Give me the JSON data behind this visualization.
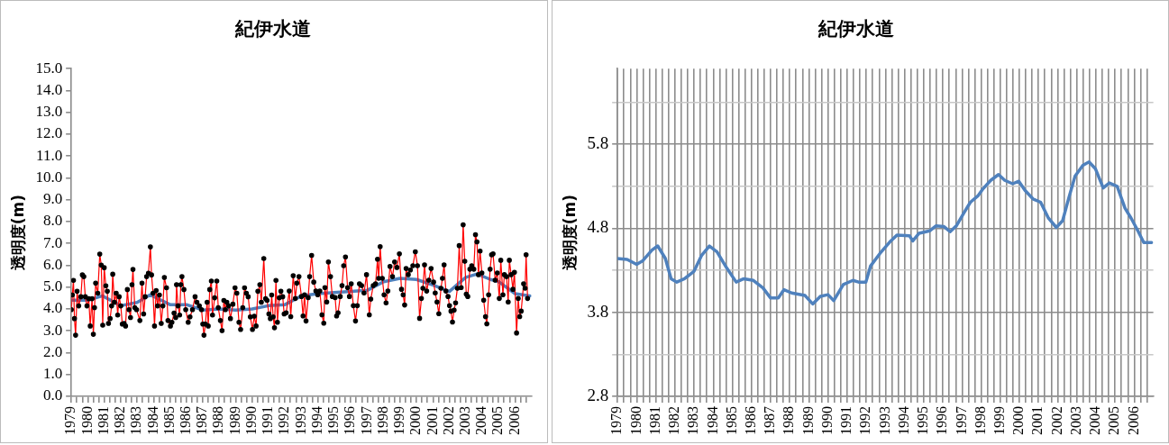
{
  "chart_data": [
    {
      "type": "line",
      "title": "紀伊水道",
      "ylabel": "透明度(m)",
      "xlim": [
        1979,
        2007
      ],
      "ylim": [
        0,
        15
      ],
      "yticks": [
        {
          "value": 0,
          "label": "0.0"
        },
        {
          "value": 1,
          "label": "1.0"
        },
        {
          "value": 2,
          "label": "2.0"
        },
        {
          "value": 3,
          "label": "3.0"
        },
        {
          "value": 4,
          "label": "4.0"
        },
        {
          "value": 5,
          "label": "5.0"
        },
        {
          "value": 6,
          "label": "6.0"
        },
        {
          "value": 7,
          "label": "7.0"
        },
        {
          "value": 8,
          "label": "8.0"
        },
        {
          "value": 9,
          "label": "9.0"
        },
        {
          "value": 10,
          "label": "10.0"
        },
        {
          "value": 11,
          "label": "11.0"
        },
        {
          "value": 12,
          "label": "12.0"
        },
        {
          "value": 13,
          "label": "13.0"
        },
        {
          "value": 14,
          "label": "14.0"
        },
        {
          "value": 15,
          "label": "15.0"
        }
      ],
      "xticks": [
        1979,
        {
          "value": 1979.33,
          "label": null
        },
        {
          "value": 1979.67,
          "label": null
        },
        1980,
        {
          "value": 1980.33,
          "label": null
        },
        {
          "value": 1980.67,
          "label": null
        },
        1981,
        {
          "value": 1981.33,
          "label": null
        },
        {
          "value": 1981.67,
          "label": null
        },
        1982,
        {
          "value": 1982.33,
          "label": null
        },
        {
          "value": 1982.67,
          "label": null
        },
        1983,
        {
          "value": 1983.33,
          "label": null
        },
        {
          "value": 1983.67,
          "label": null
        },
        1984,
        {
          "value": 1984.33,
          "label": null
        },
        {
          "value": 1984.67,
          "label": null
        },
        1985,
        {
          "value": 1985.33,
          "label": null
        },
        {
          "value": 1985.67,
          "label": null
        },
        1986,
        {
          "value": 1986.33,
          "label": null
        },
        {
          "value": 1986.67,
          "label": null
        },
        1987,
        {
          "value": 1987.33,
          "label": null
        },
        {
          "value": 1987.67,
          "label": null
        },
        1988,
        {
          "value": 1988.33,
          "label": null
        },
        {
          "value": 1988.67,
          "label": null
        },
        1989,
        {
          "value": 1989.33,
          "label": null
        },
        {
          "value": 1989.67,
          "label": null
        },
        1990,
        {
          "value": 1990.33,
          "label": null
        },
        {
          "value": 1990.67,
          "label": null
        },
        1991,
        {
          "value": 1991.33,
          "label": null
        },
        {
          "value": 1991.67,
          "label": null
        },
        1992,
        {
          "value": 1992.33,
          "label": null
        },
        {
          "value": 1992.67,
          "label": null
        },
        1993,
        {
          "value": 1993.33,
          "label": null
        },
        {
          "value": 1993.67,
          "label": null
        },
        1994,
        {
          "value": 1994.33,
          "label": null
        },
        {
          "value": 1994.67,
          "label": null
        },
        1995,
        {
          "value": 1995.33,
          "label": null
        },
        {
          "value": 1995.67,
          "label": null
        },
        1996,
        {
          "value": 1996.33,
          "label": null
        },
        {
          "value": 1996.67,
          "label": null
        },
        1997,
        {
          "value": 1997.33,
          "label": null
        },
        {
          "value": 1997.67,
          "label": null
        },
        1998,
        {
          "value": 1998.33,
          "label": null
        },
        {
          "value": 1998.67,
          "label": null
        },
        1999,
        {
          "value": 1999.33,
          "label": null
        },
        {
          "value": 1999.67,
          "label": null
        },
        2000,
        {
          "value": 2000.33,
          "label": null
        },
        {
          "value": 2000.67,
          "label": null
        },
        2001,
        {
          "value": 2001.33,
          "label": null
        },
        {
          "value": 2001.67,
          "label": null
        },
        2002,
        {
          "value": 2002.33,
          "label": null
        },
        {
          "value": 2002.67,
          "label": null
        },
        2003,
        {
          "value": 2003.33,
          "label": null
        },
        {
          "value": 2003.67,
          "label": null
        },
        2004,
        {
          "value": 2004.33,
          "label": null
        },
        {
          "value": 2004.67,
          "label": null
        },
        2005,
        {
          "value": 2005.33,
          "label": null
        },
        {
          "value": 2005.67,
          "label": null
        },
        2006,
        {
          "value": 2006.33,
          "label": null
        },
        {
          "value": 2006.67,
          "label": null
        }
      ],
      "grid": false,
      "legend": false,
      "series": [
        {
          "color": "#ff0000",
          "marker": "circle",
          "x": [
            1979.0,
            1979.06,
            1979.13,
            1979.19,
            1979.26,
            1979.35,
            1979.45,
            1979.58,
            1979.67,
            1979.76,
            1979.85,
            1979.95,
            1980.06,
            1980.15,
            1980.26,
            1980.34,
            1980.41,
            1980.48,
            1980.61,
            1980.73,
            1980.82,
            1980.91,
            1981.0,
            1981.1,
            1981.19,
            1981.26,
            1981.36,
            1981.45,
            1981.52,
            1981.62,
            1981.73,
            1981.82,
            1981.91,
            1982.01,
            1982.1,
            1982.21,
            1982.3,
            1982.41,
            1982.51,
            1982.6,
            1982.69,
            1982.75,
            1982.86,
            1982.97,
            1983.17,
            1983.3,
            1983.4,
            1983.49,
            1983.58,
            1983.69,
            1983.81,
            1983.88,
            1983.97,
            1984.06,
            1984.16,
            1984.25,
            1984.36,
            1984.47,
            1984.57,
            1984.66,
            1984.79,
            1984.88,
            1985.03,
            1985.12,
            1985.25,
            1985.35,
            1985.4,
            1985.49,
            1985.59,
            1985.66,
            1985.73,
            1985.85,
            1985.96,
            1986.11,
            1986.22,
            1986.37,
            1986.53,
            1986.64,
            1986.79,
            1986.92,
            1987.0,
            1987.07,
            1987.16,
            1987.26,
            1987.33,
            1987.42,
            1987.52,
            1987.59,
            1987.72,
            1987.85,
            1987.94,
            1988.07,
            1988.17,
            1988.28,
            1988.37,
            1988.46,
            1988.57,
            1988.68,
            1988.83,
            1988.96,
            1989.07,
            1989.2,
            1989.3,
            1989.43,
            1989.54,
            1989.65,
            1989.76,
            1989.89,
            1990.02,
            1990.13,
            1990.24,
            1990.35,
            1990.47,
            1990.56,
            1990.71,
            1990.82,
            1990.91,
            1991.02,
            1991.11,
            1991.19,
            1991.28,
            1991.36,
            1991.45,
            1991.54,
            1991.65,
            1991.75,
            1991.86,
            1991.95,
            1992.07,
            1992.26,
            1992.35,
            1992.5,
            1992.63,
            1992.72,
            1992.85,
            1993.0,
            1993.1,
            1993.19,
            1993.28,
            1993.41,
            1993.5,
            1993.62,
            1993.75,
            1993.88,
            1993.99,
            1994.12,
            1994.25,
            1994.36,
            1994.43,
            1994.54,
            1994.64,
            1994.77,
            1994.88,
            1995.05,
            1995.14,
            1995.23,
            1995.36,
            1995.47,
            1995.57,
            1995.68,
            1995.81,
            1995.92,
            1996.03,
            1996.16,
            1996.29,
            1996.4,
            1996.53,
            1996.66,
            1996.81,
            1996.96,
            1997.13,
            1997.22,
            1997.37,
            1997.51,
            1997.63,
            1997.7,
            1997.79,
            1997.92,
            1998.03,
            1998.15,
            1998.26,
            1998.39,
            1998.54,
            1998.67,
            1998.81,
            1998.96,
            1999.09,
            1999.19,
            1999.28,
            1999.37,
            1999.5,
            1999.63,
            1999.78,
            1999.93,
            2000.06,
            2000.19,
            2000.3,
            2000.39,
            2000.49,
            2000.62,
            2000.75,
            2000.89,
            2001.04,
            2001.14,
            2001.25,
            2001.36,
            2001.49,
            2001.58,
            2001.68,
            2001.79,
            2001.92,
            2002.01,
            2002.1,
            2002.19,
            2002.29,
            2002.38,
            2002.49,
            2002.6,
            2002.72,
            2002.84,
            2002.94,
            2003.03,
            2003.12,
            2003.25,
            2003.36,
            2003.49,
            2003.59,
            2003.68,
            2003.77,
            2003.87,
            2003.98,
            2004.09,
            2004.2,
            2004.28,
            2004.39,
            2004.48,
            2004.57,
            2004.66,
            2004.79,
            2004.92,
            2005.04,
            2005.13,
            2005.26,
            2005.35,
            2005.48,
            2005.58,
            2005.65,
            2005.76,
            2005.87,
            2005.96,
            2006.09,
            2006.19,
            2006.28,
            2006.37,
            2006.52,
            2006.61,
            2006.67,
            2006.76
          ],
          "values": [
            3.97,
            4.64,
            5.31,
            3.56,
            2.8,
            4.81,
            4.14,
            4.56,
            5.56,
            5.48,
            4.56,
            4.14,
            4.47,
            3.22,
            4.47,
            2.84,
            4.06,
            5.18,
            4.72,
            6.51,
            6.01,
            3.26,
            5.89,
            5.06,
            4.81,
            3.34,
            3.56,
            4.14,
            5.59,
            4.31,
            4.72,
            3.72,
            4.56,
            4.14,
            3.31,
            3.34,
            3.22,
            4.89,
            3.97,
            3.61,
            5.11,
            5.81,
            4.06,
            3.97,
            3.47,
            5.18,
            3.77,
            4.56,
            5.48,
            5.64,
            6.84,
            5.56,
            4.72,
            3.22,
            4.84,
            4.14,
            4.64,
            3.34,
            4.14,
            5.44,
            4.97,
            3.47,
            3.22,
            3.39,
            3.81,
            3.61,
            5.11,
            4.14,
            3.72,
            5.11,
            5.48,
            4.89,
            3.97,
            3.39,
            3.64,
            3.97,
            4.56,
            4.31,
            4.14,
            3.97,
            3.31,
            2.8,
            3.31,
            4.31,
            3.22,
            4.89,
            5.28,
            3.72,
            4.51,
            5.28,
            4.06,
            3.47,
            3.01,
            4.39,
            3.97,
            4.31,
            4.14,
            3.56,
            4.22,
            4.97,
            4.72,
            3.39,
            3.06,
            4.06,
            4.97,
            4.72,
            4.56,
            3.64,
            3.06,
            3.67,
            3.22,
            4.81,
            5.11,
            4.31,
            6.31,
            4.47,
            4.39,
            3.77,
            3.56,
            4.64,
            3.64,
            3.14,
            5.31,
            3.39,
            4.51,
            4.81,
            4.56,
            3.77,
            3.82,
            4.82,
            3.65,
            5.52,
            4.48,
            5.18,
            5.48,
            4.57,
            3.68,
            4.65,
            3.45,
            4.52,
            5.48,
            6.45,
            5.23,
            4.82,
            4.65,
            4.82,
            3.73,
            3.35,
            4.98,
            4.32,
            6.15,
            5.48,
            4.57,
            4.52,
            3.68,
            3.82,
            4.57,
            5.07,
            5.98,
            6.38,
            4.98,
            4.57,
            5.15,
            4.15,
            3.45,
            4.15,
            5.15,
            5.07,
            4.73,
            5.57,
            3.73,
            4.45,
            5.07,
            5.15,
            6.28,
            5.4,
            6.85,
            5.4,
            4.65,
            4.28,
            4.82,
            5.95,
            5.48,
            6.15,
            5.9,
            6.52,
            4.9,
            4.65,
            4.18,
            5.85,
            5.57,
            5.78,
            5.98,
            6.62,
            5.98,
            3.57,
            4.48,
            4.95,
            6.02,
            4.82,
            5.32,
            5.85,
            5.23,
            4.73,
            4.32,
            3.78,
            4.95,
            5.4,
            6.02,
            4.82,
            4.57,
            4.15,
            3.9,
            3.4,
            3.95,
            4.28,
            4.95,
            6.9,
            4.98,
            7.85,
            6.18,
            4.68,
            4.57,
            5.82,
            5.98,
            5.82,
            7.4,
            7.07,
            5.57,
            6.65,
            5.65,
            4.4,
            3.65,
            3.32,
            4.65,
            5.82,
            6.48,
            6.52,
            5.32,
            5.65,
            4.48,
            6.23,
            4.65,
            5.57,
            5.48,
            4.32,
            6.23,
            5.57,
            4.9,
            5.68,
            2.9,
            4.48,
            3.65,
            3.9,
            5.15,
            4.95,
            6.48,
            4.48
          ]
        },
        {
          "color": "#4f81bd",
          "marker": "none",
          "x": [
            1979,
            1980,
            1980.9,
            1982,
            1983,
            1983.8,
            1985,
            1986,
            1987,
            1988,
            1989,
            1990,
            1991,
            1992,
            1993,
            1994,
            1995,
            1996,
            1997,
            1998,
            1999,
            2000,
            2001,
            2002,
            2003,
            2003.7,
            2004.5,
            2005,
            2006,
            2006.9
          ],
          "values": [
            4.4,
            4.4,
            4.6,
            4.15,
            4.3,
            4.65,
            4.2,
            4.2,
            3.95,
            4.0,
            3.95,
            4.0,
            4.15,
            4.2,
            4.6,
            4.7,
            4.75,
            4.8,
            4.85,
            5.25,
            5.4,
            5.35,
            5.1,
            4.8,
            5.45,
            5.6,
            5.35,
            5.25,
            4.7,
            4.6
          ]
        }
      ]
    },
    {
      "type": "line",
      "title": "紀伊水道",
      "ylabel": "透明度(m)",
      "xlim": [
        1979,
        2007
      ],
      "ylim": [
        2.8,
        6.7
      ],
      "yticks": [
        2.8,
        {
          "value": 3.3,
          "label": null
        },
        3.8,
        {
          "value": 4.3,
          "label": null
        },
        4.8,
        {
          "value": 5.3,
          "label": null
        },
        5.8,
        {
          "value": 6.3,
          "label": null
        }
      ],
      "xticks": [
        1979,
        {
          "value": 1979.33,
          "label": null
        },
        {
          "value": 1979.67,
          "label": null
        },
        1980,
        {
          "value": 1980.33,
          "label": null
        },
        {
          "value": 1980.67,
          "label": null
        },
        1981,
        {
          "value": 1981.33,
          "label": null
        },
        {
          "value": 1981.67,
          "label": null
        },
        1982,
        {
          "value": 1982.33,
          "label": null
        },
        {
          "value": 1982.67,
          "label": null
        },
        1983,
        {
          "value": 1983.33,
          "label": null
        },
        {
          "value": 1983.67,
          "label": null
        },
        1984,
        {
          "value": 1984.33,
          "label": null
        },
        {
          "value": 1984.67,
          "label": null
        },
        1985,
        {
          "value": 1985.33,
          "label": null
        },
        {
          "value": 1985.67,
          "label": null
        },
        1986,
        {
          "value": 1986.33,
          "label": null
        },
        {
          "value": 1986.67,
          "label": null
        },
        1987,
        {
          "value": 1987.33,
          "label": null
        },
        {
          "value": 1987.67,
          "label": null
        },
        1988,
        {
          "value": 1988.33,
          "label": null
        },
        {
          "value": 1988.67,
          "label": null
        },
        1989,
        {
          "value": 1989.33,
          "label": null
        },
        {
          "value": 1989.67,
          "label": null
        },
        1990,
        {
          "value": 1990.33,
          "label": null
        },
        {
          "value": 1990.67,
          "label": null
        },
        1991,
        {
          "value": 1991.33,
          "label": null
        },
        {
          "value": 1991.67,
          "label": null
        },
        1992,
        {
          "value": 1992.33,
          "label": null
        },
        {
          "value": 1992.67,
          "label": null
        },
        1993,
        {
          "value": 1993.33,
          "label": null
        },
        {
          "value": 1993.67,
          "label": null
        },
        1994,
        {
          "value": 1994.33,
          "label": null
        },
        {
          "value": 1994.67,
          "label": null
        },
        1995,
        {
          "value": 1995.33,
          "label": null
        },
        {
          "value": 1995.67,
          "label": null
        },
        1996,
        {
          "value": 1996.33,
          "label": null
        },
        {
          "value": 1996.67,
          "label": null
        },
        1997,
        {
          "value": 1997.33,
          "label": null
        },
        {
          "value": 1997.67,
          "label": null
        },
        1998,
        {
          "value": 1998.33,
          "label": null
        },
        {
          "value": 1998.67,
          "label": null
        },
        1999,
        {
          "value": 1999.33,
          "label": null
        },
        {
          "value": 1999.67,
          "label": null
        },
        2000,
        {
          "value": 2000.33,
          "label": null
        },
        {
          "value": 2000.67,
          "label": null
        },
        2001,
        {
          "value": 2001.33,
          "label": null
        },
        {
          "value": 2001.67,
          "label": null
        },
        2002,
        {
          "value": 2002.33,
          "label": null
        },
        {
          "value": 2002.67,
          "label": null
        },
        2003,
        {
          "value": 2003.33,
          "label": null
        },
        {
          "value": 2003.67,
          "label": null
        },
        2004,
        {
          "value": 2004.33,
          "label": null
        },
        {
          "value": 2004.67,
          "label": null
        },
        2005,
        {
          "value": 2005.33,
          "label": null
        },
        {
          "value": 2005.67,
          "label": null
        },
        2006,
        {
          "value": 2006.33,
          "label": null
        },
        {
          "value": 2006.67,
          "label": null
        }
      ],
      "grid": true,
      "legend": false,
      "series": [
        {
          "color": "#4f81bd",
          "marker": "none",
          "x": [
            1979.0,
            1979.5,
            1980.0,
            1980.3,
            1980.8,
            1981.1,
            1981.5,
            1981.8,
            1982.1,
            1982.5,
            1983.0,
            1983.4,
            1983.8,
            1984.2,
            1984.7,
            1985.2,
            1985.6,
            1986.1,
            1986.6,
            1987.0,
            1987.4,
            1987.7,
            1988.1,
            1988.8,
            1989.2,
            1989.6,
            1990.0,
            1990.3,
            1990.8,
            1991.3,
            1991.6,
            1991.98,
            1992.22,
            1992.71,
            1993.28,
            1993.61,
            1994.26,
            1994.43,
            1994.75,
            1995.32,
            1995.65,
            1996.06,
            1996.38,
            1996.71,
            1997.12,
            1997.44,
            1997.85,
            1998.1,
            1998.5,
            1998.91,
            1999.24,
            1999.65,
            1999.97,
            2000.3,
            2000.71,
            2001.11,
            2001.52,
            2001.93,
            2002.26,
            2002.58,
            2002.91,
            2003.32,
            2003.64,
            2003.97,
            2004.38,
            2004.7,
            2005.11,
            2005.52,
            2005.84,
            2006.17,
            2006.5,
            2006.91
          ],
          "values": [
            4.44,
            4.43,
            4.37,
            4.41,
            4.54,
            4.59,
            4.44,
            4.2,
            4.16,
            4.2,
            4.29,
            4.48,
            4.59,
            4.52,
            4.33,
            4.16,
            4.2,
            4.18,
            4.09,
            3.97,
            3.97,
            4.07,
            4.03,
            4.0,
            3.9,
            3.99,
            4.01,
            3.94,
            4.13,
            4.18,
            4.16,
            4.16,
            4.35,
            4.5,
            4.65,
            4.72,
            4.71,
            4.65,
            4.74,
            4.77,
            4.83,
            4.82,
            4.76,
            4.83,
            4.99,
            5.11,
            5.19,
            5.27,
            5.37,
            5.44,
            5.37,
            5.33,
            5.36,
            5.25,
            5.15,
            5.11,
            4.92,
            4.81,
            4.89,
            5.16,
            5.42,
            5.55,
            5.59,
            5.51,
            5.28,
            5.34,
            5.3,
            5.04,
            4.92,
            4.78,
            4.63,
            4.63
          ]
        }
      ]
    }
  ]
}
